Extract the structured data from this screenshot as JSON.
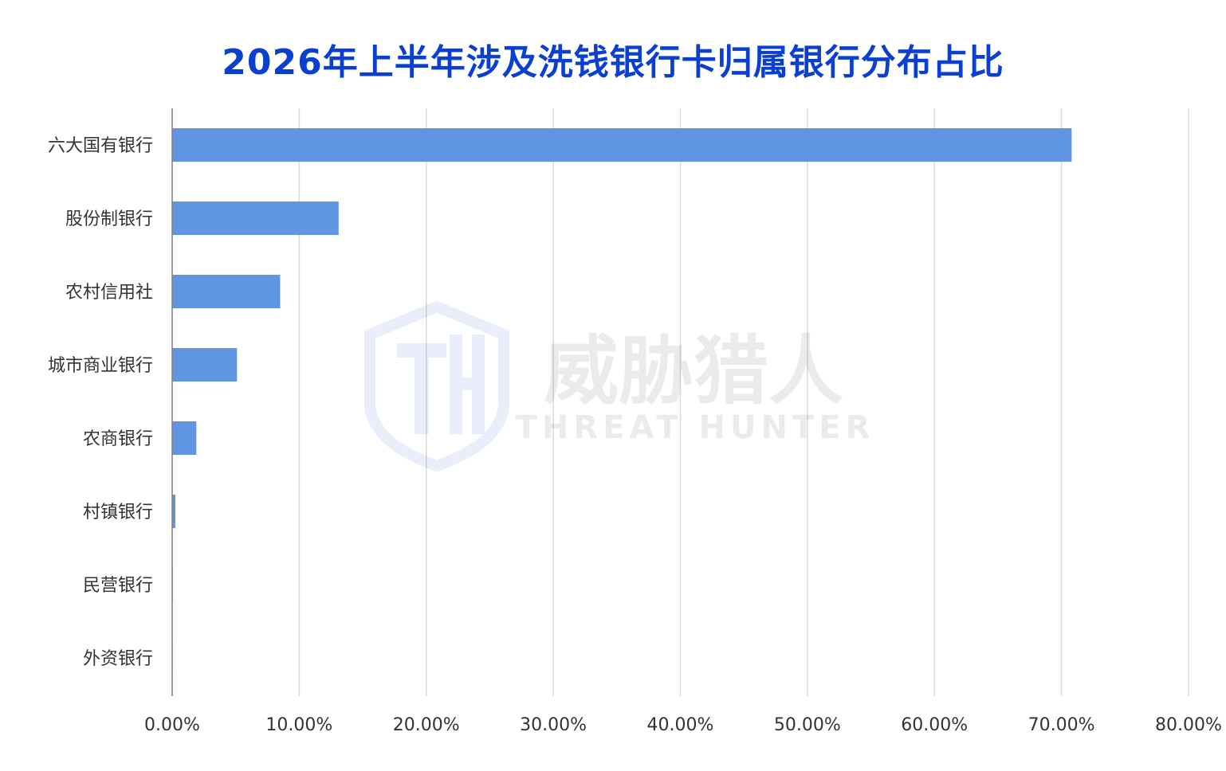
{
  "chart_data": {
    "type": "bar",
    "orientation": "horizontal",
    "title": "2026年上半年涉及洗钱银行卡归属银行分布占比",
    "categories": [
      "六大国有银行",
      "股份制银行",
      "农村信用社",
      "城市商业银行",
      "农商银行",
      "村镇银行",
      "民营银行",
      "外资银行"
    ],
    "values": [
      70.8,
      13.1,
      8.5,
      5.1,
      1.9,
      0.25,
      0.05,
      0.02
    ],
    "value_unit": "%",
    "xlim": [
      0,
      80
    ],
    "x_ticks": [
      "0.00%",
      "10.00%",
      "20.00%",
      "30.00%",
      "40.00%",
      "50.00%",
      "60.00%",
      "70.00%",
      "80.00%"
    ],
    "grid": "vertical",
    "legend": "none",
    "bar_color": "#6095e3",
    "grid_color": "#d9d9d9",
    "axis_color": "#7f7f7f"
  },
  "watermark": {
    "cn_text": "威胁猎人",
    "en_text": "THREAT HUNTER",
    "icon": "shield-th-logo-icon"
  },
  "colors": {
    "title": "#0a3fd0",
    "text": "#333333"
  }
}
